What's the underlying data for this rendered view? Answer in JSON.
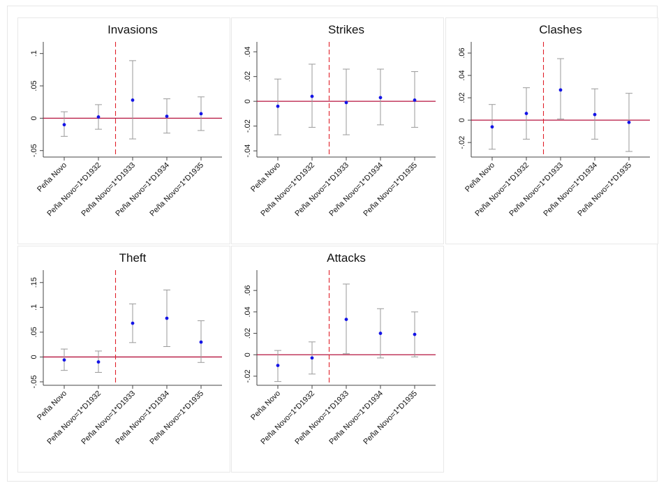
{
  "chart_data": [
    {
      "type": "errorbar",
      "title": "Invasions",
      "categories": [
        "Peña Novo",
        "Peña Novo=1*D1932",
        "Peña Novo=1*D1933",
        "Peña Novo=1*D1934",
        "Peña Novo=1*D1935"
      ],
      "values": [
        -0.01,
        0.002,
        0.028,
        0.003,
        0.007
      ],
      "lower": [
        -0.028,
        -0.017,
        -0.032,
        -0.023,
        -0.019
      ],
      "upper": [
        0.01,
        0.021,
        0.089,
        0.03,
        0.033
      ],
      "color": "#1414e6",
      "ci_color": "#9a9a9a",
      "ylim": [
        -0.06,
        0.118
      ],
      "yticks": [
        {
          "value": -0.05,
          "label": "-.05"
        },
        0,
        {
          "value": 0.05,
          "label": ".05"
        },
        {
          "value": 0.1,
          "label": ".1"
        }
      ],
      "hline": 0,
      "hline_color": "#b5123e",
      "vline": 1.5,
      "vline_color": "#e0202a"
    },
    {
      "type": "errorbar",
      "title": "Strikes",
      "categories": [
        "Peña Novo",
        "Peña Novo=1*D1932",
        "Peña Novo=1*D1933",
        "Peña Novo=1*D1934",
        "Peña Novo=1*D1935"
      ],
      "values": [
        -0.004,
        0.004,
        -0.001,
        0.003,
        0.001
      ],
      "lower": [
        -0.027,
        -0.021,
        -0.027,
        -0.019,
        -0.021
      ],
      "upper": [
        0.018,
        0.03,
        0.026,
        0.026,
        0.024
      ],
      "color": "#1414e6",
      "ci_color": "#9a9a9a",
      "ylim": [
        -0.045,
        0.048
      ],
      "yticks": [
        {
          "value": -0.04,
          "label": "-.04"
        },
        {
          "value": -0.02,
          "label": "-.02"
        },
        0,
        {
          "value": 0.02,
          "label": ".02"
        },
        {
          "value": 0.04,
          "label": ".04"
        }
      ],
      "hline": 0,
      "hline_color": "#b5123e",
      "vline": 1.5,
      "vline_color": "#e0202a"
    },
    {
      "type": "errorbar",
      "title": "Clashes",
      "categories": [
        "Peña Novo",
        "Peña Novo=1*D1932",
        "Peña Novo=1*D1933",
        "Peña Novo=1*D1934",
        "Peña Novo=1*D1935"
      ],
      "values": [
        -0.006,
        0.006,
        0.027,
        0.005,
        -0.002
      ],
      "lower": [
        -0.026,
        -0.017,
        0.001,
        -0.017,
        -0.028
      ],
      "upper": [
        0.014,
        0.029,
        0.055,
        0.028,
        0.024
      ],
      "color": "#1414e6",
      "ci_color": "#9a9a9a",
      "ylim": [
        -0.033,
        0.07
      ],
      "yticks": [
        {
          "value": -0.02,
          "label": "-.02"
        },
        0,
        {
          "value": 0.02,
          "label": ".02"
        },
        {
          "value": 0.04,
          "label": ".04"
        },
        {
          "value": 0.06,
          "label": ".06"
        }
      ],
      "hline": 0,
      "hline_color": "#b5123e",
      "vline": 1.5,
      "vline_color": "#e0202a"
    },
    {
      "type": "errorbar",
      "title": "Theft",
      "categories": [
        "Peña Novo",
        "Peña Novo=1*D1932",
        "Peña Novo=1*D1933",
        "Peña Novo=1*D1934",
        "Peña Novo=1*D1935"
      ],
      "values": [
        -0.006,
        -0.01,
        0.068,
        0.078,
        0.03
      ],
      "lower": [
        -0.027,
        -0.031,
        0.029,
        0.021,
        -0.011
      ],
      "upper": [
        0.016,
        0.012,
        0.107,
        0.135,
        0.073
      ],
      "color": "#1414e6",
      "ci_color": "#9a9a9a",
      "ylim": [
        -0.057,
        0.175
      ],
      "yticks": [
        {
          "value": -0.05,
          "label": "-.05"
        },
        0,
        {
          "value": 0.05,
          "label": ".05"
        },
        {
          "value": 0.1,
          "label": ".1"
        },
        {
          "value": 0.15,
          "label": ".15"
        }
      ],
      "hline": 0,
      "hline_color": "#b5123e",
      "vline": 1.5,
      "vline_color": "#e0202a"
    },
    {
      "type": "errorbar",
      "title": "Attacks",
      "categories": [
        "Peña Novo",
        "Peña Novo=1*D1932",
        "Peña Novo=1*D1933",
        "Peña Novo=1*D1934",
        "Peña Novo=1*D1935"
      ],
      "values": [
        -0.01,
        -0.003,
        0.033,
        0.02,
        0.019
      ],
      "lower": [
        -0.025,
        -0.018,
        0.001,
        -0.003,
        -0.002
      ],
      "upper": [
        0.004,
        0.012,
        0.066,
        0.043,
        0.04
      ],
      "color": "#1414e6",
      "ci_color": "#9a9a9a",
      "ylim": [
        -0.0285,
        0.079
      ],
      "yticks": [
        {
          "value": -0.02,
          "label": "-.02"
        },
        0,
        {
          "value": 0.02,
          "label": ".02"
        },
        {
          "value": 0.04,
          "label": ".04"
        },
        {
          "value": 0.06,
          "label": ".06"
        }
      ],
      "hline": 0,
      "hline_color": "#b5123e",
      "vline": 1.5,
      "vline_color": "#e0202a"
    }
  ]
}
